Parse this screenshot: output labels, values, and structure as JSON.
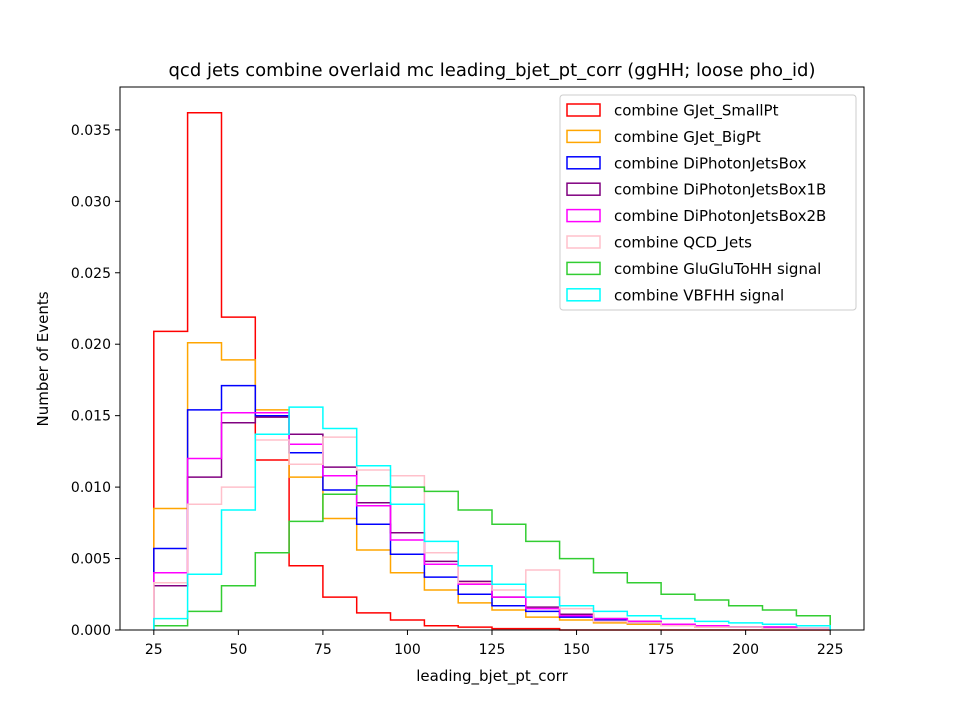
{
  "chart_data": {
    "type": "histogram",
    "title": "qcd jets combine overlaid mc leading_bjet_pt_corr (ggHH; loose pho_id)",
    "xlabel": "leading_bjet_pt_corr",
    "ylabel": "Number of Events",
    "xlim": [
      15,
      235
    ],
    "ylim": [
      0,
      0.038
    ],
    "xticks": [
      25,
      50,
      75,
      100,
      125,
      150,
      175,
      200,
      225
    ],
    "xtick_labels": [
      "25",
      "50",
      "75",
      "100",
      "125",
      "150",
      "175",
      "200",
      "225"
    ],
    "yticks": [
      0,
      0.005,
      0.01,
      0.015,
      0.02,
      0.025,
      0.03,
      0.035
    ],
    "ytick_labels": [
      "0.000",
      "0.005",
      "0.010",
      "0.015",
      "0.020",
      "0.025",
      "0.030",
      "0.035"
    ],
    "grid": false,
    "legend_position": "top-right",
    "bin_edges": [
      25,
      35,
      45,
      55,
      65,
      75,
      85,
      95,
      105,
      115,
      125,
      135,
      145,
      155,
      165,
      175,
      185,
      195,
      205,
      215,
      225
    ],
    "series": [
      {
        "name": "combine GJet_SmallPt",
        "color": "#ff0000",
        "values": [
          0.0209,
          0.0362,
          0.0219,
          0.0119,
          0.0045,
          0.0023,
          0.0012,
          0.0007,
          0.0003,
          0.0002,
          0.0001,
          0.0001,
          0.0,
          0.0,
          0.0,
          0.0,
          0.0,
          0.0,
          0.0,
          0.0
        ]
      },
      {
        "name": "combine GJet_BigPt",
        "color": "#ffa500",
        "values": [
          0.0085,
          0.0201,
          0.0189,
          0.0154,
          0.0107,
          0.0078,
          0.0056,
          0.004,
          0.0028,
          0.0019,
          0.0014,
          0.0009,
          0.0007,
          0.0005,
          0.0004,
          0.0003,
          0.0002,
          0.0002,
          0.0001,
          0.0001
        ]
      },
      {
        "name": "combine DiPhotonJetsBox",
        "color": "#0000ff",
        "values": [
          0.0057,
          0.0154,
          0.0171,
          0.015,
          0.0124,
          0.0098,
          0.0074,
          0.0053,
          0.0037,
          0.0025,
          0.0017,
          0.0013,
          0.0009,
          0.0007,
          0.0005,
          0.0004,
          0.0003,
          0.0002,
          0.0002,
          0.0001
        ]
      },
      {
        "name": "combine DiPhotonJetsBox1B",
        "color": "#800080",
        "values": [
          0.0031,
          0.0107,
          0.0145,
          0.0149,
          0.0137,
          0.0114,
          0.0089,
          0.0068,
          0.0048,
          0.0034,
          0.0023,
          0.0016,
          0.0011,
          0.0008,
          0.0006,
          0.0004,
          0.0003,
          0.0002,
          0.0002,
          0.0001
        ]
      },
      {
        "name": "combine DiPhotonJetsBox2B",
        "color": "#ff00ff",
        "values": [
          0.004,
          0.012,
          0.0152,
          0.0152,
          0.013,
          0.0108,
          0.0087,
          0.0063,
          0.0046,
          0.0032,
          0.0023,
          0.0015,
          0.001,
          0.0008,
          0.0006,
          0.0004,
          0.0003,
          0.0002,
          0.0002,
          0.0001
        ]
      },
      {
        "name": "combine QCD_Jets",
        "color": "#ffc0cb",
        "values": [
          0.0033,
          0.0088,
          0.01,
          0.0133,
          0.0116,
          0.0135,
          0.0112,
          0.0108,
          0.0054,
          0.0033,
          0.0028,
          0.0042,
          0.0015,
          0.0006,
          0.0005,
          0.0003,
          0.0002,
          0.0002,
          0.0001,
          0.0001
        ]
      },
      {
        "name": "combine GluGluToHH signal",
        "color": "#32cd32",
        "values": [
          0.0003,
          0.0013,
          0.0031,
          0.0054,
          0.0076,
          0.0095,
          0.0101,
          0.01,
          0.0097,
          0.0084,
          0.0074,
          0.0062,
          0.005,
          0.004,
          0.0033,
          0.0025,
          0.0021,
          0.0017,
          0.0014,
          0.001
        ]
      },
      {
        "name": "combine VBFHH signal",
        "color": "#00ffff",
        "values": [
          0.0008,
          0.0039,
          0.0084,
          0.0137,
          0.0156,
          0.0141,
          0.0115,
          0.0088,
          0.0062,
          0.0045,
          0.0032,
          0.0023,
          0.0017,
          0.0013,
          0.001,
          0.0008,
          0.0006,
          0.0005,
          0.0004,
          0.0003
        ]
      }
    ]
  }
}
